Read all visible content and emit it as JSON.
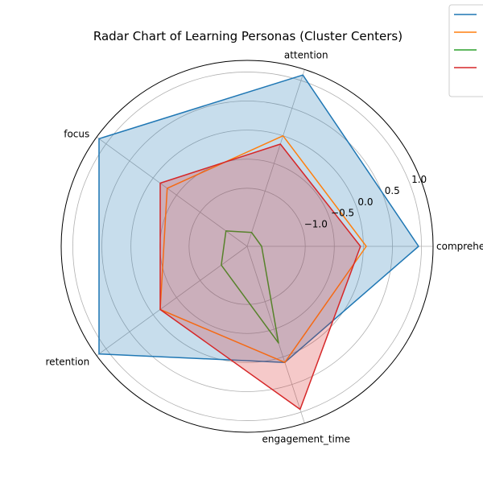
{
  "chart_data": {
    "type": "radar",
    "title": "Radar Chart of Learning Personas (Cluster Centers)",
    "axes": [
      "comprehension",
      "attention",
      "focus",
      "retention",
      "engagement_time"
    ],
    "rlim": [
      -2,
      1.2
    ],
    "r_ticks": [
      -1.0,
      -0.5,
      0.0,
      0.5,
      1.0
    ],
    "r_tick_labels": [
      "−1.0",
      "−0.5",
      "0.0",
      "0.5",
      "1.0"
    ],
    "grid": true,
    "legend": "top-right (outside)",
    "series": [
      {
        "color": "#1f77b4",
        "filled": true,
        "values": [
          0.95,
          1.1,
          1.15,
          1.15,
          0.1
        ]
      },
      {
        "color": "#ff7f0e",
        "filled": false,
        "values": [
          0.05,
          0.0,
          -0.3,
          -0.15,
          0.1
        ]
      },
      {
        "color": "#2ca02c",
        "filled": false,
        "values": [
          -1.75,
          -1.75,
          -1.55,
          -1.45,
          -0.25
        ]
      },
      {
        "color": "#d62728",
        "filled": true,
        "values": [
          -0.05,
          -0.15,
          -0.15,
          -0.15,
          0.95
        ]
      }
    ]
  }
}
